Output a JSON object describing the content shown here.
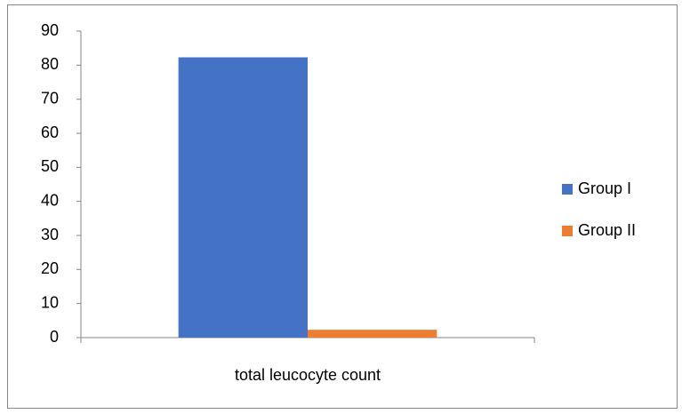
{
  "chart_data": {
    "type": "bar",
    "categories": [
      "total leucocyte count"
    ],
    "series": [
      {
        "name": "Group I",
        "color": "#4472c4",
        "values": [
          82.3
        ]
      },
      {
        "name": "Group II",
        "color": "#ed7d31",
        "values": [
          2.3
        ]
      }
    ],
    "ylim": [
      0,
      90
    ],
    "yticks": [
      0,
      10,
      20,
      30,
      40,
      50,
      60,
      70,
      80,
      90
    ],
    "legend": "right",
    "grid": false
  }
}
